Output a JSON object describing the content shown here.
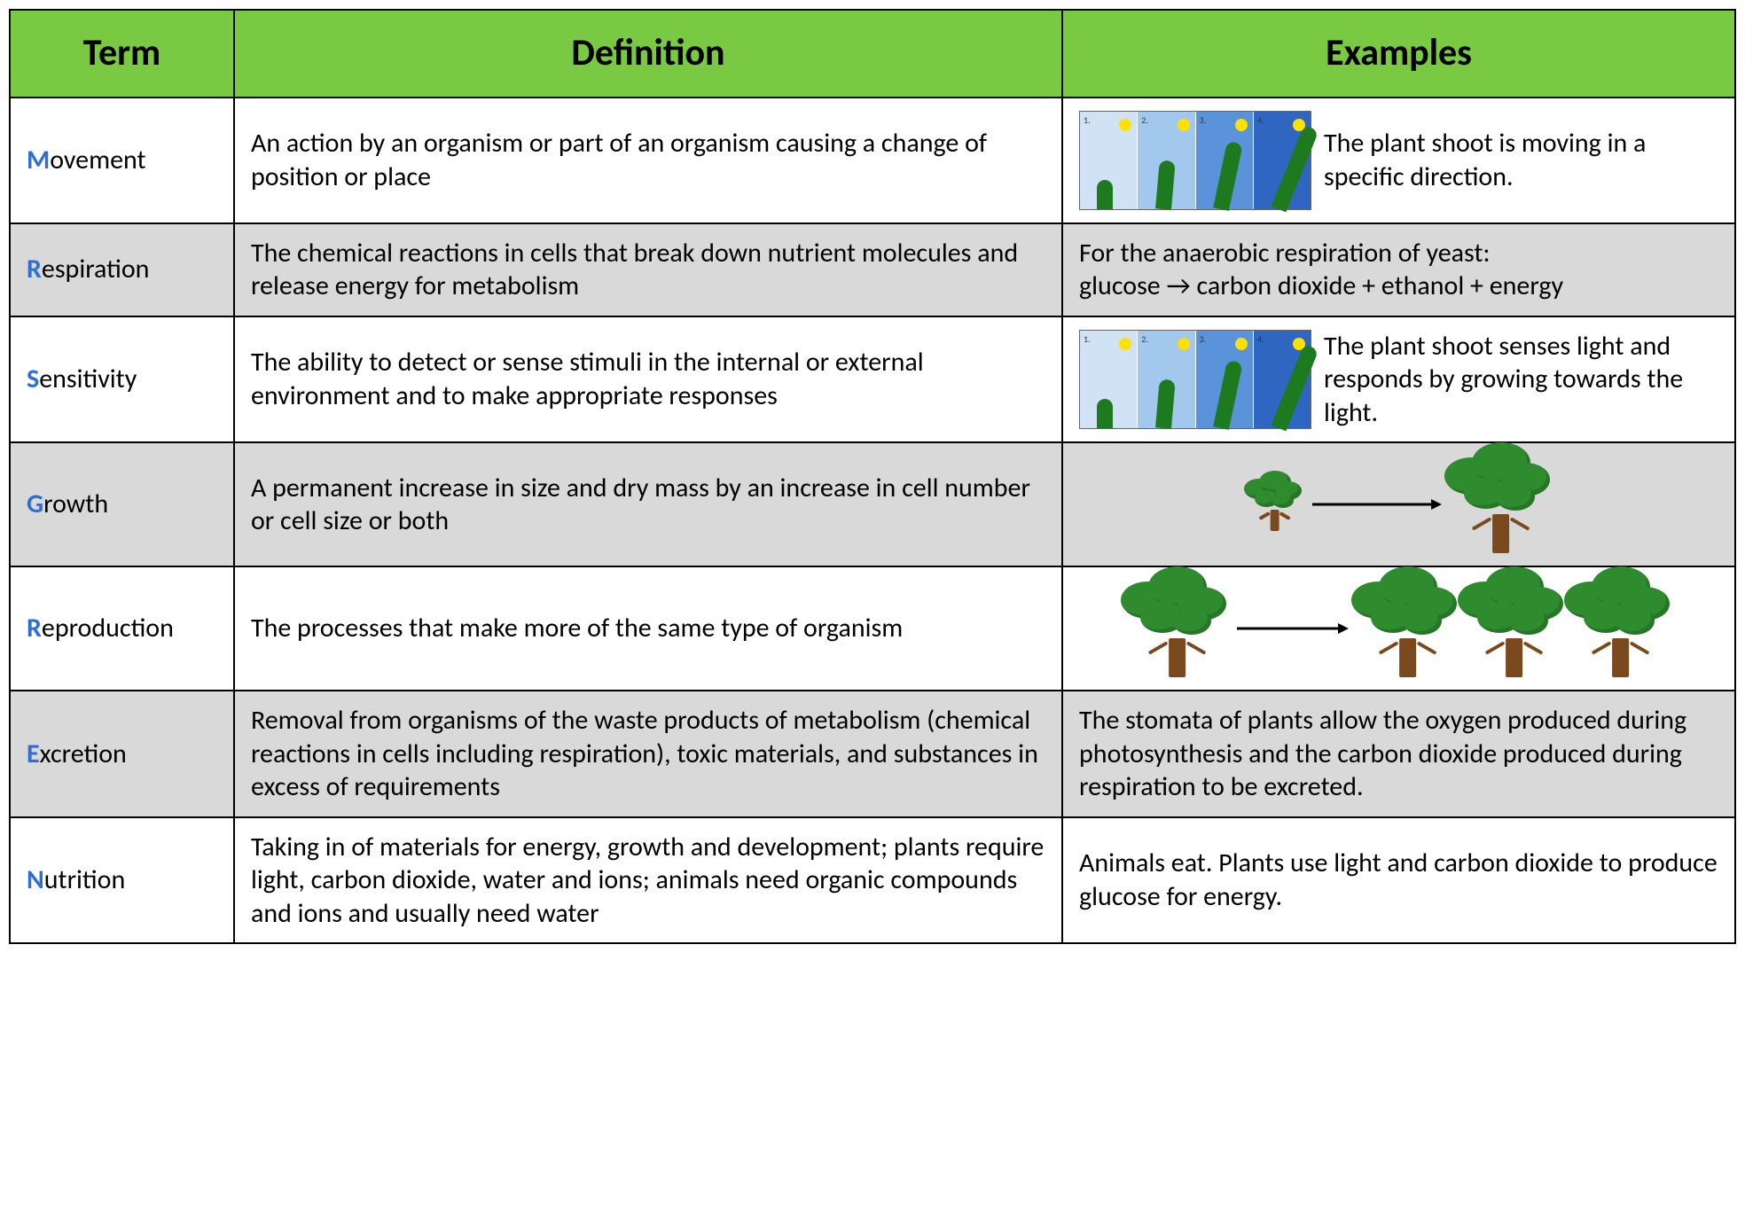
{
  "table": {
    "header_bg": "#7ac943",
    "alt_row_bg": "#d9d9d9",
    "initial_color": "#2e6fd1",
    "columns": [
      "Term",
      "Definition",
      "Examples"
    ],
    "rows": [
      {
        "term_initial": "M",
        "term_rest": "ovement",
        "definition": "An action by an organism or part of an organism causing a change of position or place",
        "example_text": "The plant shoot is moving in a specific direction.",
        "example_visual": "phototropism",
        "alt": false
      },
      {
        "term_initial": "R",
        "term_rest": "espiration",
        "definition": "The chemical reactions in cells that break down nutrient molecules and release energy for metabolism",
        "example_text": "For the anaerobic respiration of yeast:\nglucose → carbon dioxide + ethanol + energy",
        "example_visual": "none",
        "alt": true
      },
      {
        "term_initial": "S",
        "term_rest": "ensitivity",
        "definition": "The ability to detect or sense stimuli in the internal or external environment and to make appropriate responses",
        "example_text": "The plant shoot senses light and responds by growing towards the light.",
        "example_visual": "phototropism",
        "alt": false
      },
      {
        "term_initial": "G",
        "term_rest": "rowth",
        "definition": "A permanent increase in size and dry mass by an increase in cell number or cell size or both",
        "example_text": "",
        "example_visual": "growth",
        "alt": true
      },
      {
        "term_initial": "R",
        "term_rest": "eproduction",
        "definition": "The processes that make more of the same type of organism",
        "example_text": "",
        "example_visual": "reproduction",
        "alt": false
      },
      {
        "term_initial": "E",
        "term_rest": "xcretion",
        "definition": "Removal from organisms of the waste products of metabolism (chemical reactions in cells including respiration), toxic materials, and substances in excess of requirements",
        "example_text": "The stomata of plants allow the oxygen produced during photosynthesis and the carbon dioxide produced during respiration to be excreted.",
        "example_visual": "none",
        "alt": true
      },
      {
        "term_initial": "N",
        "term_rest": "utrition",
        "definition": "Taking in of materials for energy, growth and development; plants require light, carbon dioxide, water and ions; animals need organic compounds and ions and usually need water",
        "example_text": "Animals eat. Plants use light and carbon dioxide to produce glucose for energy.",
        "example_visual": "none",
        "alt": false
      }
    ],
    "phototropism": {
      "panel_bg": [
        "#cfe3f5",
        "#a3c8ee",
        "#5a93d9",
        "#2f66c2"
      ],
      "sun_color": "#ffe100",
      "shoot_color": "#1e7a1e",
      "shoot_heights": [
        30,
        50,
        70,
        90
      ],
      "shoot_tilts": [
        0,
        5,
        12,
        22
      ]
    },
    "tree": {
      "crown_color": "#2e8b2e",
      "crown_dark": "#1d5c1d",
      "trunk_color": "#7a4a1e"
    },
    "arrow_color": "#000000"
  }
}
